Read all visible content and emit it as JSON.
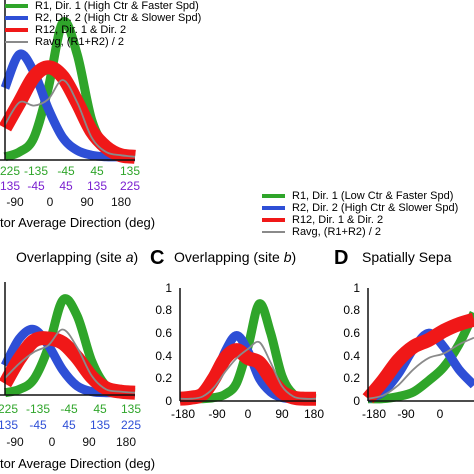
{
  "colors": {
    "green": "#2fa52a",
    "blue": "#2e4fd6",
    "red": "#f01818",
    "gray": "#8a8a8a",
    "purple": "#7a1fd0",
    "black": "#111111"
  },
  "legend_top": [
    {
      "text": "R1, Dir. 1 (High Ctr & Faster Spd)",
      "color": "green"
    },
    {
      "text": "R2, Dir. 2 (High Ctr & Slower Spd)",
      "color": "blue"
    },
    {
      "text": "R12, Dir. 1 & Dir. 2",
      "color": "red"
    },
    {
      "text": "Ravg, (R1+R2) / 2",
      "color": "gray"
    }
  ],
  "legend_right": [
    {
      "text": "R1, Dir. 1 (Low Ctr & Faster Spd)",
      "color": "green"
    },
    {
      "text": "R2, Dir. 2 (High Ctr & Slower Spd)",
      "color": "blue"
    },
    {
      "text": "R12, Dir. 1 & Dir. 2",
      "color": "red"
    },
    {
      "text": "Ravg, (R1+R2) / 2",
      "color": "gray"
    }
  ],
  "panels": {
    "topleft": {
      "xticks_green": [
        "225",
        "-135",
        "-45",
        "45",
        "135"
      ],
      "xticks_purple": [
        "135",
        "-45",
        "45",
        "135",
        "225"
      ],
      "xticks_black": [
        "-90",
        "0",
        "90",
        "180"
      ],
      "xlabel": "tor Average Direction (deg)"
    },
    "b": {
      "title": "Overlapping (site a)",
      "title_plain": "Overlapping (site ",
      "title_italic": "a",
      "title_end": ")",
      "xticks_green": [
        "225",
        "-135",
        "-45",
        "45",
        "135"
      ],
      "xticks_blue": [
        "135",
        "-45",
        "45",
        "135",
        "225"
      ],
      "xticks_black": [
        "-90",
        "0",
        "90",
        "180"
      ],
      "xlabel": "tor Average Direction (deg)"
    },
    "c": {
      "letter": "C",
      "title_plain": "Overlapping (site ",
      "title_italic": "b",
      "title_end": ")",
      "yticks": [
        "1",
        "0.8",
        "0.6",
        "0.4",
        "0.2",
        "0"
      ],
      "xticks": [
        "-180",
        "-90",
        "0",
        "90",
        "180"
      ]
    },
    "d": {
      "letter": "D",
      "title": "Spatially Sepa",
      "yticks": [
        "1",
        "0.8",
        "0.6",
        "0.4",
        "0.2",
        "0"
      ],
      "xticks": [
        "-180",
        "-90",
        "0"
      ]
    }
  },
  "chart_data": [
    {
      "type": "area",
      "panel": "top-left (cropped)",
      "x": [
        -90,
        -60,
        -30,
        0,
        30,
        60,
        90,
        120,
        150,
        180
      ],
      "series": [
        {
          "name": "R1, Dir. 1 (High Ctr & Faster Spd)",
          "values": [
            0.02,
            0.05,
            0.14,
            0.45,
            0.86,
            0.66,
            0.25,
            0.08,
            0.03,
            0.02
          ]
        },
        {
          "name": "R2, Dir. 2 (High Ctr & Slower Spd)",
          "values": [
            0.45,
            0.66,
            0.55,
            0.32,
            0.14,
            0.06,
            0.03,
            0.02,
            0.02,
            0.02
          ]
        },
        {
          "name": "R12, Dir. 1 & Dir. 2",
          "values": [
            0.2,
            0.36,
            0.52,
            0.58,
            0.52,
            0.36,
            0.18,
            0.08,
            0.03,
            0.02
          ]
        },
        {
          "name": "Ravg, (R1+R2) / 2",
          "values": [
            0.22,
            0.36,
            0.34,
            0.38,
            0.5,
            0.36,
            0.14,
            0.05,
            0.03,
            0.02
          ]
        }
      ]
    },
    {
      "type": "area",
      "panel": "B (cropped)",
      "title": "Overlapping (site a)",
      "x": [
        -90,
        -60,
        -30,
        0,
        30,
        60,
        90,
        120,
        150,
        180
      ],
      "series": [
        {
          "name": "R1, Dir. 1 (Low Ctr & Faster Spd)",
          "values": [
            0.02,
            0.05,
            0.14,
            0.42,
            0.84,
            0.7,
            0.3,
            0.08,
            0.03,
            0.02
          ]
        },
        {
          "name": "R2, Dir. 2 (High Ctr & Slower Spd)",
          "values": [
            0.26,
            0.5,
            0.58,
            0.44,
            0.22,
            0.08,
            0.03,
            0.02,
            0.02,
            0.02
          ]
        },
        {
          "name": "R12, Dir. 1 & Dir. 2",
          "values": [
            0.1,
            0.32,
            0.48,
            0.5,
            0.46,
            0.33,
            0.16,
            0.06,
            0.03,
            0.02
          ]
        },
        {
          "name": "Ravg, (R1+R2) / 2",
          "values": [
            0.15,
            0.28,
            0.38,
            0.44,
            0.58,
            0.42,
            0.17,
            0.05,
            0.03,
            0.02
          ]
        }
      ]
    },
    {
      "type": "area",
      "panel": "C",
      "title": "Overlapping (site b)",
      "ylim": [
        0,
        1
      ],
      "xlim": [
        -180,
        180
      ],
      "x": [
        -180,
        -150,
        -120,
        -90,
        -60,
        -30,
        0,
        30,
        60,
        90,
        120,
        150,
        180
      ],
      "series": [
        {
          "name": "R1, Dir. 1 (Low Ctr & Faster Spd)",
          "values": [
            0.02,
            0.02,
            0.02,
            0.03,
            0.06,
            0.16,
            0.48,
            0.86,
            0.6,
            0.22,
            0.06,
            0.03,
            0.02
          ]
        },
        {
          "name": "R2, Dir. 2 (High Ctr & Slower Spd)",
          "values": [
            0.02,
            0.03,
            0.06,
            0.2,
            0.44,
            0.58,
            0.44,
            0.2,
            0.08,
            0.03,
            0.02,
            0.02,
            0.02
          ]
        },
        {
          "name": "R12, Dir. 1 & Dir. 2",
          "values": [
            0.02,
            0.03,
            0.06,
            0.2,
            0.38,
            0.45,
            0.38,
            0.34,
            0.2,
            0.08,
            0.03,
            0.02,
            0.02
          ]
        },
        {
          "name": "Ravg, (R1+R2) / 2",
          "values": [
            0.02,
            0.02,
            0.04,
            0.12,
            0.26,
            0.38,
            0.46,
            0.52,
            0.34,
            0.13,
            0.04,
            0.02,
            0.02
          ]
        }
      ]
    },
    {
      "type": "area",
      "panel": "D (cropped)",
      "title": "Spatially Sepa",
      "ylim": [
        0,
        1
      ],
      "xlim": [
        -180,
        30
      ],
      "x": [
        -180,
        -150,
        -120,
        -90,
        -60,
        -30,
        0,
        30
      ],
      "series": [
        {
          "name": "R1, Dir. 1 (Low Ctr & Faster Spd)",
          "values": [
            0.02,
            0.02,
            0.04,
            0.08,
            0.18,
            0.3,
            0.5,
            0.78
          ]
        },
        {
          "name": "R2, Dir. 2 (High Ctr & Slower Spd)",
          "values": [
            0.02,
            0.08,
            0.24,
            0.46,
            0.6,
            0.48,
            0.28,
            0.14
          ]
        },
        {
          "name": "R12, Dir. 1 & Dir. 2",
          "values": [
            0.02,
            0.18,
            0.36,
            0.48,
            0.54,
            0.62,
            0.68,
            0.72
          ]
        },
        {
          "name": "Ravg, (R1+R2) / 2",
          "values": [
            0.02,
            0.05,
            0.14,
            0.28,
            0.38,
            0.42,
            0.5,
            0.56
          ]
        }
      ]
    }
  ]
}
